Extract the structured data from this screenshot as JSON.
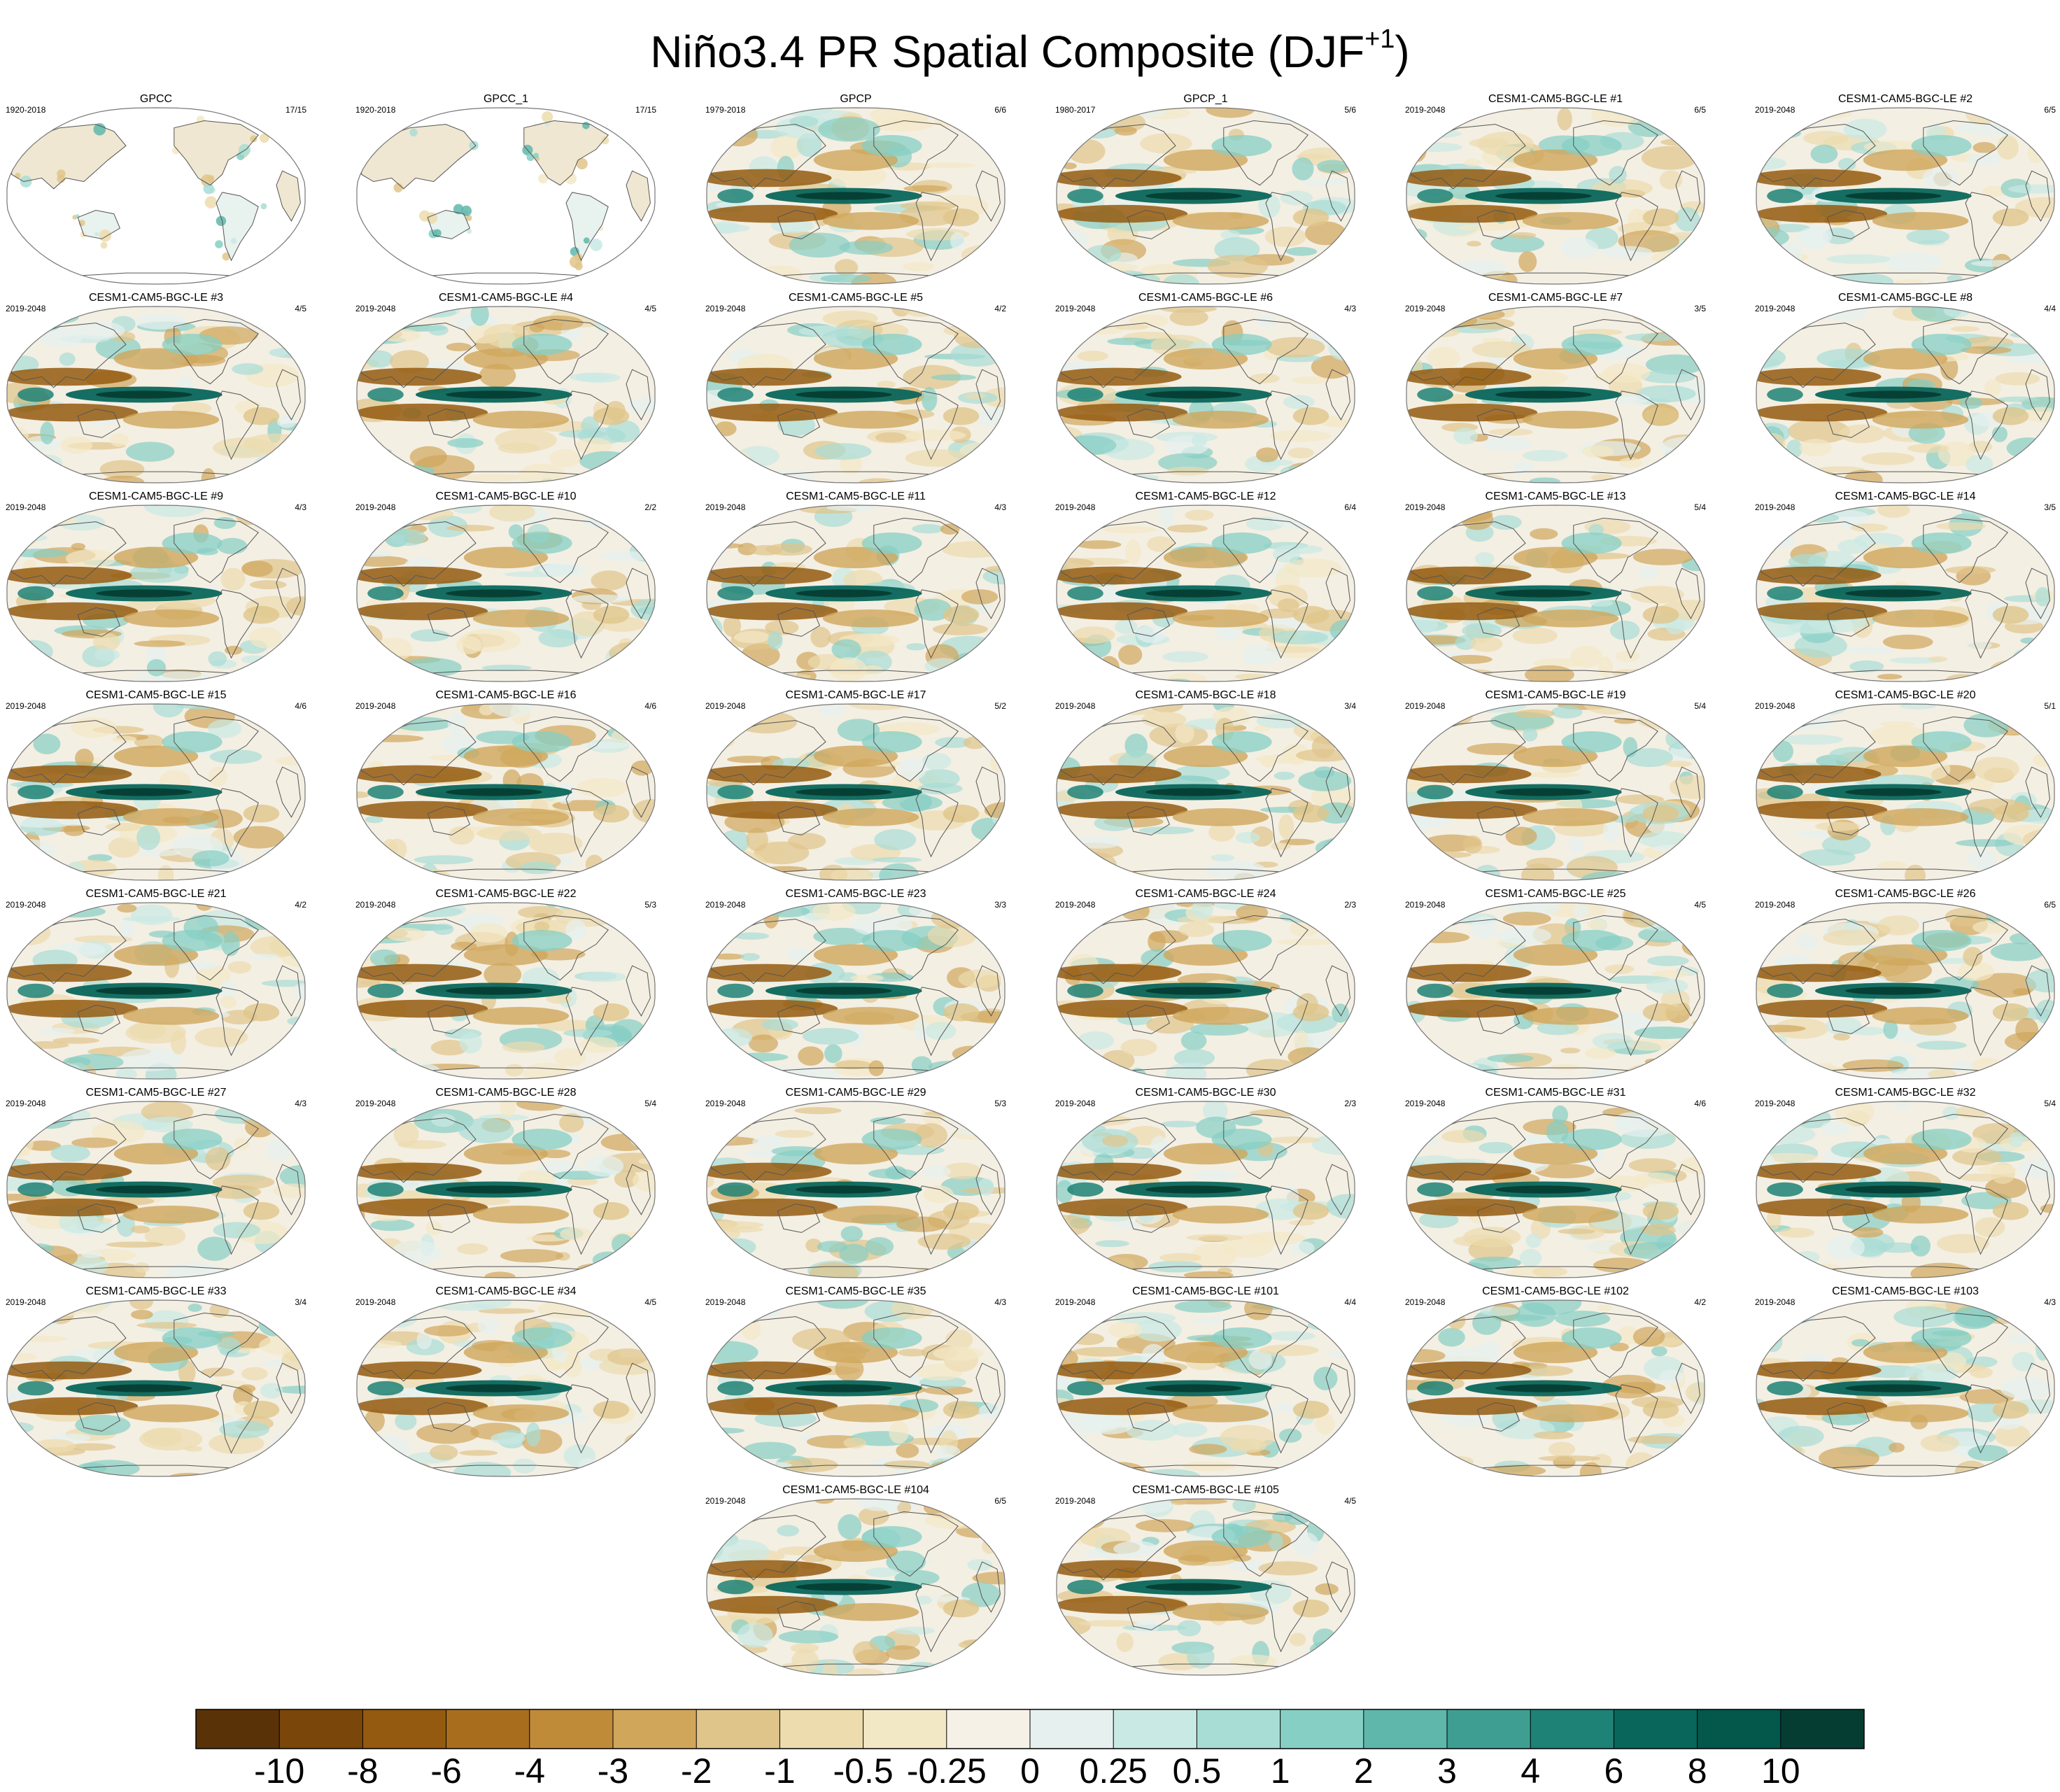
{
  "header": {
    "title": "Niño3.4 PR Spatial Composite (DJF",
    "title_superscript": "+1",
    "title_suffix": ")"
  },
  "colors": {
    "ocean_land_outline": "#555555",
    "map_border": "#777777"
  },
  "chart_data": {
    "type": "heatmap",
    "description_type": "grid of global map panels with discrete diverging colorbar",
    "panels": [
      {
        "title": "GPCC",
        "years": "1920-2018",
        "count": "17/15",
        "kind": "land"
      },
      {
        "title": "GPCC_1",
        "years": "1920-2018",
        "count": "17/15",
        "kind": "land"
      },
      {
        "title": "GPCP",
        "years": "1979-2018",
        "count": "6/6",
        "kind": "obs"
      },
      {
        "title": "GPCP_1",
        "years": "1980-2017",
        "count": "5/6",
        "kind": "obs"
      },
      {
        "title": "CESM1-CAM5-BGC-LE #1",
        "years": "2019-2048",
        "count": "6/5",
        "kind": "model"
      },
      {
        "title": "CESM1-CAM5-BGC-LE #2",
        "years": "2019-2048",
        "count": "6/5",
        "kind": "model"
      },
      {
        "title": "CESM1-CAM5-BGC-LE #3",
        "years": "2019-2048",
        "count": "4/5",
        "kind": "model"
      },
      {
        "title": "CESM1-CAM5-BGC-LE #4",
        "years": "2019-2048",
        "count": "4/5",
        "kind": "model"
      },
      {
        "title": "CESM1-CAM5-BGC-LE #5",
        "years": "2019-2048",
        "count": "4/2",
        "kind": "model"
      },
      {
        "title": "CESM1-CAM5-BGC-LE #6",
        "years": "2019-2048",
        "count": "4/3",
        "kind": "model"
      },
      {
        "title": "CESM1-CAM5-BGC-LE #7",
        "years": "2019-2048",
        "count": "3/5",
        "kind": "model"
      },
      {
        "title": "CESM1-CAM5-BGC-LE #8",
        "years": "2019-2048",
        "count": "4/4",
        "kind": "model"
      },
      {
        "title": "CESM1-CAM5-BGC-LE #9",
        "years": "2019-2048",
        "count": "4/3",
        "kind": "model"
      },
      {
        "title": "CESM1-CAM5-BGC-LE #10",
        "years": "2019-2048",
        "count": "2/2",
        "kind": "model"
      },
      {
        "title": "CESM1-CAM5-BGC-LE #11",
        "years": "2019-2048",
        "count": "4/3",
        "kind": "model"
      },
      {
        "title": "CESM1-CAM5-BGC-LE #12",
        "years": "2019-2048",
        "count": "6/4",
        "kind": "model"
      },
      {
        "title": "CESM1-CAM5-BGC-LE #13",
        "years": "2019-2048",
        "count": "5/4",
        "kind": "model"
      },
      {
        "title": "CESM1-CAM5-BGC-LE #14",
        "years": "2019-2048",
        "count": "3/5",
        "kind": "model"
      },
      {
        "title": "CESM1-CAM5-BGC-LE #15",
        "years": "2019-2048",
        "count": "4/6",
        "kind": "model"
      },
      {
        "title": "CESM1-CAM5-BGC-LE #16",
        "years": "2019-2048",
        "count": "4/6",
        "kind": "model"
      },
      {
        "title": "CESM1-CAM5-BGC-LE #17",
        "years": "2019-2048",
        "count": "5/2",
        "kind": "model"
      },
      {
        "title": "CESM1-CAM5-BGC-LE #18",
        "years": "2019-2048",
        "count": "3/4",
        "kind": "model"
      },
      {
        "title": "CESM1-CAM5-BGC-LE #19",
        "years": "2019-2048",
        "count": "5/4",
        "kind": "model"
      },
      {
        "title": "CESM1-CAM5-BGC-LE #20",
        "years": "2019-2048",
        "count": "5/1",
        "kind": "model"
      },
      {
        "title": "CESM1-CAM5-BGC-LE #21",
        "years": "2019-2048",
        "count": "4/2",
        "kind": "model"
      },
      {
        "title": "CESM1-CAM5-BGC-LE #22",
        "years": "2019-2048",
        "count": "5/3",
        "kind": "model"
      },
      {
        "title": "CESM1-CAM5-BGC-LE #23",
        "years": "2019-2048",
        "count": "3/3",
        "kind": "model"
      },
      {
        "title": "CESM1-CAM5-BGC-LE #24",
        "years": "2019-2048",
        "count": "2/3",
        "kind": "model"
      },
      {
        "title": "CESM1-CAM5-BGC-LE #25",
        "years": "2019-2048",
        "count": "4/5",
        "kind": "model"
      },
      {
        "title": "CESM1-CAM5-BGC-LE #26",
        "years": "2019-2048",
        "count": "6/5",
        "kind": "model"
      },
      {
        "title": "CESM1-CAM5-BGC-LE #27",
        "years": "2019-2048",
        "count": "4/3",
        "kind": "model"
      },
      {
        "title": "CESM1-CAM5-BGC-LE #28",
        "years": "2019-2048",
        "count": "5/4",
        "kind": "model"
      },
      {
        "title": "CESM1-CAM5-BGC-LE #29",
        "years": "2019-2048",
        "count": "5/3",
        "kind": "model"
      },
      {
        "title": "CESM1-CAM5-BGC-LE #30",
        "years": "2019-2048",
        "count": "2/3",
        "kind": "model"
      },
      {
        "title": "CESM1-CAM5-BGC-LE #31",
        "years": "2019-2048",
        "count": "4/6",
        "kind": "model"
      },
      {
        "title": "CESM1-CAM5-BGC-LE #32",
        "years": "2019-2048",
        "count": "5/4",
        "kind": "model"
      },
      {
        "title": "CESM1-CAM5-BGC-LE #33",
        "years": "2019-2048",
        "count": "3/4",
        "kind": "model"
      },
      {
        "title": "CESM1-CAM5-BGC-LE #34",
        "years": "2019-2048",
        "count": "4/5",
        "kind": "model"
      },
      {
        "title": "CESM1-CAM5-BGC-LE #35",
        "years": "2019-2048",
        "count": "4/3",
        "kind": "model"
      },
      {
        "title": "CESM1-CAM5-BGC-LE #101",
        "years": "2019-2048",
        "count": "4/4",
        "kind": "model"
      },
      {
        "title": "CESM1-CAM5-BGC-LE #102",
        "years": "2019-2048",
        "count": "4/2",
        "kind": "model"
      },
      {
        "title": "CESM1-CAM5-BGC-LE #103",
        "years": "2019-2048",
        "count": "4/3",
        "kind": "model"
      },
      {
        "title": "CESM1-CAM5-BGC-LE #104",
        "years": "2019-2048",
        "count": "6/5",
        "kind": "model"
      },
      {
        "title": "CESM1-CAM5-BGC-LE #105",
        "years": "2019-2048",
        "count": "4/5",
        "kind": "model"
      }
    ],
    "colorbar": {
      "labels": [
        "-10",
        "-8",
        "-6",
        "-4",
        "-3",
        "-2",
        "-1",
        "-0.5",
        "-0.25",
        "0",
        "0.25",
        "0.5",
        "1",
        "2",
        "3",
        "4",
        "6",
        "8",
        "10"
      ],
      "colors": [
        "#5a3208",
        "#7a4609",
        "#945a0f",
        "#a86e1e",
        "#bf8b39",
        "#d0a65b",
        "#e0c58a",
        "#ecdcae",
        "#f3e8c6",
        "#f5f1e7",
        "#e6f1ef",
        "#c9e9e4",
        "#a8ddd5",
        "#86cfc4",
        "#5fb7ab",
        "#3e9e92",
        "#1e8276",
        "#09665b",
        "#03574b",
        "#053d33"
      ]
    }
  }
}
